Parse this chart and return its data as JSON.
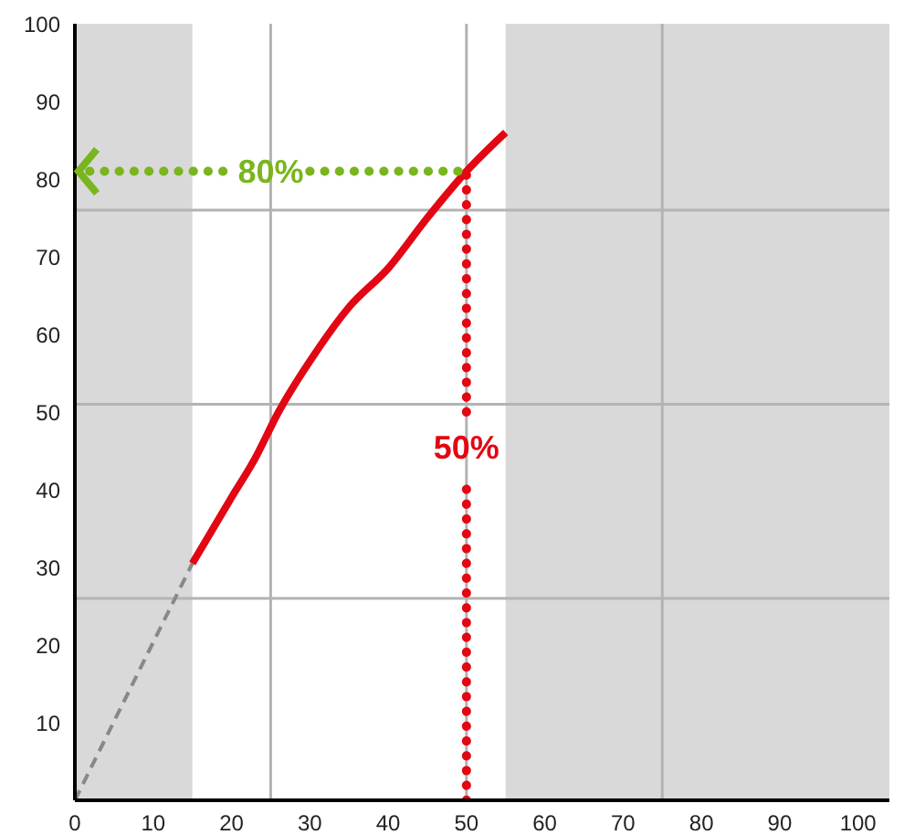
{
  "chart_data": {
    "type": "line",
    "xlim": [
      0,
      104
    ],
    "ylim": [
      0,
      100
    ],
    "xticks": [
      0,
      10,
      20,
      30,
      40,
      50,
      60,
      70,
      80,
      90,
      100
    ],
    "yticks": [
      10,
      20,
      30,
      40,
      50,
      60,
      70,
      80,
      90,
      100
    ],
    "marker": "none",
    "bands": [
      {
        "axis": "x",
        "from": 0,
        "to": 15,
        "color": "#d9d9d9"
      },
      {
        "axis": "x",
        "from": 55,
        "to": 104,
        "color": "#d9d9d9"
      }
    ],
    "ref_lines": [
      {
        "axis": "x",
        "value": 25,
        "color": "#b3b3b3"
      },
      {
        "axis": "x",
        "value": 50,
        "color": "#b3b3b3"
      },
      {
        "axis": "x",
        "value": 75,
        "color": "#b3b3b3"
      },
      {
        "axis": "y",
        "value": 26,
        "color": "#b3b3b3"
      },
      {
        "axis": "y",
        "value": 51,
        "color": "#b3b3b3"
      },
      {
        "axis": "y",
        "value": 76,
        "color": "#b3b3b3"
      }
    ],
    "series": [
      {
        "color": "#888888",
        "line_style": "dashed",
        "x": [
          0,
          15
        ],
        "values": [
          0,
          30.5
        ]
      },
      {
        "color": "#e30613",
        "line_style": "solid",
        "x": [
          15,
          20,
          23,
          26,
          30.7,
          35,
          40,
          45,
          50,
          55
        ],
        "values": [
          30.5,
          39,
          44,
          50,
          57.6,
          63.5,
          68.5,
          75,
          81,
          86
        ]
      },
      {
        "color": "#7ab51d",
        "line_style": "dotted",
        "x": [
          0,
          20,
          25,
          30,
          50
        ],
        "values": [
          81,
          81,
          null,
          81,
          81
        ]
      },
      {
        "color": "#e30613",
        "line_style": "dotted",
        "x": [
          50,
          50
        ],
        "values": [
          0,
          41
        ]
      },
      {
        "color": "#e30613",
        "line_style": "dotted",
        "x": [
          50,
          50
        ],
        "values": [
          50,
          81
        ]
      }
    ],
    "annotations": [
      {
        "text": "80%",
        "x": 25,
        "y": 81
      },
      "50%"
    ]
  }
}
